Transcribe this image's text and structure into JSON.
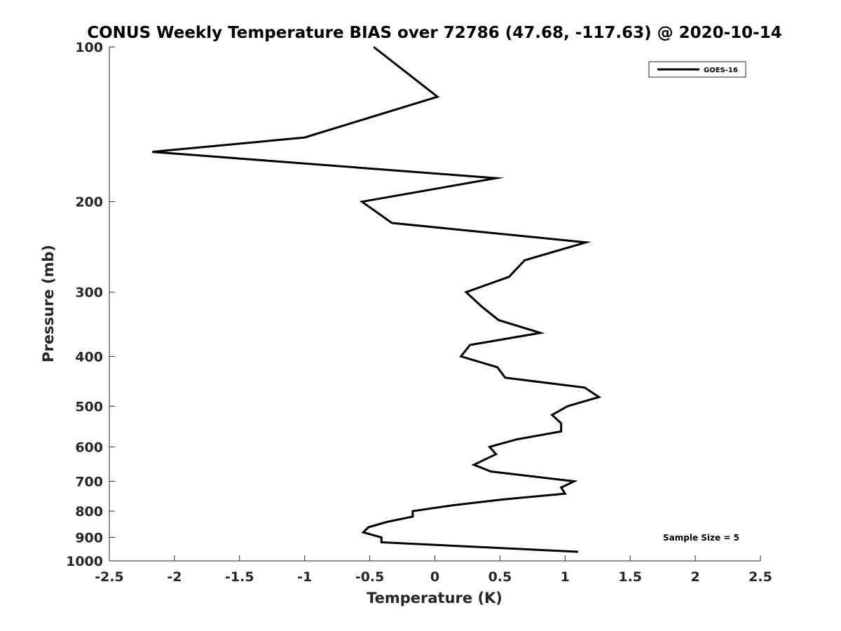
{
  "chart_data": {
    "type": "line",
    "title": "CONUS Weekly Temperature BIAS over 72786 (47.68, -117.63) @ 2020-10-14",
    "xlabel": "Temperature (K)",
    "ylabel": "Pressure (mb)",
    "xlim": [
      -2.5,
      2.5
    ],
    "ylim": [
      100,
      1000
    ],
    "y_scale": "log",
    "y_reversed": true,
    "grid": false,
    "legend_position": "top-right",
    "x_ticks": [
      -2.5,
      -2,
      -1.5,
      -1,
      -0.5,
      0,
      0.5,
      1,
      1.5,
      2,
      2.5
    ],
    "x_tick_labels": [
      "-2.5",
      "-2",
      "-1.5",
      "-1",
      "-0.5",
      "0",
      "0.5",
      "1",
      "1.5",
      "2",
      "2.5"
    ],
    "y_ticks": [
      100,
      200,
      300,
      400,
      500,
      600,
      700,
      800,
      900,
      1000
    ],
    "y_tick_labels": [
      "100",
      "200",
      "300",
      "400",
      "500",
      "600",
      "700",
      "800",
      "900",
      "1000"
    ],
    "annotations": [
      {
        "text": "Sample Size = 5",
        "position": "bottom-right"
      }
    ],
    "series": [
      {
        "name": "GOES-16",
        "color": "#000000",
        "temperature": [
          -0.47,
          0.02,
          -1.0,
          -2.17,
          0.47,
          -0.56,
          -0.33,
          1.16,
          0.69,
          0.57,
          0.24,
          0.36,
          0.49,
          0.81,
          0.27,
          0.2,
          0.48,
          0.54,
          1.15,
          1.26,
          1.02,
          0.9,
          0.97,
          0.97,
          0.63,
          0.42,
          0.47,
          0.3,
          0.43,
          1.07,
          0.97,
          1.0,
          0.51,
          0.13,
          -0.17,
          -0.17,
          -0.37,
          -0.51,
          -0.55,
          -0.41,
          -0.41,
          1.1
        ],
        "pressure": [
          100,
          125,
          150,
          160,
          180,
          200,
          220,
          240,
          260,
          280,
          300,
          320,
          340,
          360,
          380,
          400,
          420,
          440,
          460,
          480,
          500,
          520,
          540,
          560,
          580,
          600,
          620,
          650,
          670,
          700,
          720,
          740,
          760,
          780,
          800,
          820,
          840,
          860,
          880,
          900,
          920,
          960
        ]
      }
    ]
  }
}
